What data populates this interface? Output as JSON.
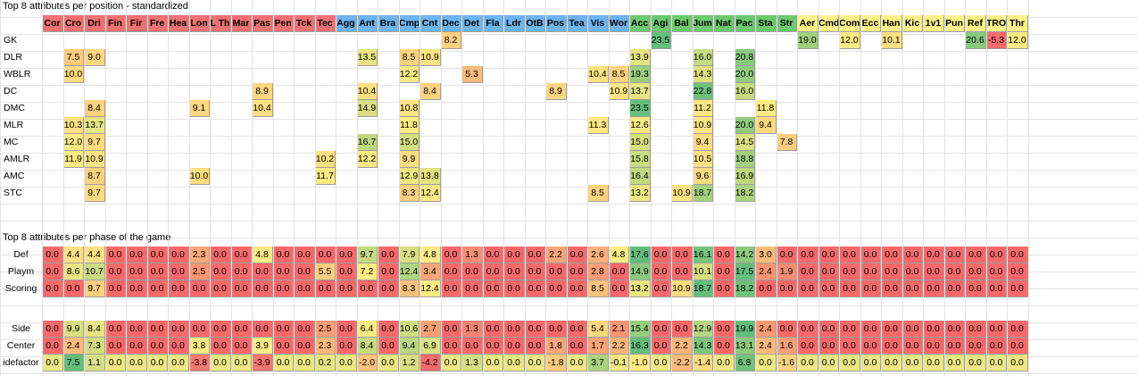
{
  "titles": {
    "position": "Top 8 attributes per position - standardized",
    "phase": "Top 8 attributes per phase of the game"
  },
  "colors": {
    "red_header": "#f07171",
    "blue_header": "#6db5ef",
    "green_header": "#6dc96d",
    "yellow_header": "#fff28a",
    "scale_low": "#f8696b",
    "scale_mid": "#ffeb84",
    "scale_high": "#63be7b"
  },
  "headers": [
    {
      "label": "Cor",
      "group": "red"
    },
    {
      "label": "Cro",
      "group": "red"
    },
    {
      "label": "Dri",
      "group": "red"
    },
    {
      "label": "Fin",
      "group": "red"
    },
    {
      "label": "Fir",
      "group": "red"
    },
    {
      "label": "Fre",
      "group": "red"
    },
    {
      "label": "Hea",
      "group": "red"
    },
    {
      "label": "Lon",
      "group": "red"
    },
    {
      "label": "L Th",
      "group": "red"
    },
    {
      "label": "Mar",
      "group": "red"
    },
    {
      "label": "Pas",
      "group": "red"
    },
    {
      "label": "Pen",
      "group": "red"
    },
    {
      "label": "Tck",
      "group": "red"
    },
    {
      "label": "Tec",
      "group": "red"
    },
    {
      "label": "Agg",
      "group": "blue"
    },
    {
      "label": "Ant",
      "group": "blue"
    },
    {
      "label": "Bra",
      "group": "blue"
    },
    {
      "label": "Cmp",
      "group": "blue"
    },
    {
      "label": "Cnt",
      "group": "blue"
    },
    {
      "label": "Dec",
      "group": "blue"
    },
    {
      "label": "Det",
      "group": "blue"
    },
    {
      "label": "Fla",
      "group": "blue"
    },
    {
      "label": "Ldr",
      "group": "blue"
    },
    {
      "label": "OtB",
      "group": "blue"
    },
    {
      "label": "Pos",
      "group": "blue"
    },
    {
      "label": "Tea",
      "group": "blue"
    },
    {
      "label": "Vis",
      "group": "blue"
    },
    {
      "label": "Wor",
      "group": "blue"
    },
    {
      "label": "Acc",
      "group": "green"
    },
    {
      "label": "Agi",
      "group": "green"
    },
    {
      "label": "Bal",
      "group": "green"
    },
    {
      "label": "Jum",
      "group": "green"
    },
    {
      "label": "Nat",
      "group": "green"
    },
    {
      "label": "Pac",
      "group": "green"
    },
    {
      "label": "Sta",
      "group": "green"
    },
    {
      "label": "Str",
      "group": "green"
    },
    {
      "label": "Aer",
      "group": "yellow"
    },
    {
      "label": "Cmd",
      "group": "yellow"
    },
    {
      "label": "Com",
      "group": "yellow"
    },
    {
      "label": "Ecc",
      "group": "yellow"
    },
    {
      "label": "Han",
      "group": "yellow"
    },
    {
      "label": "Kic",
      "group": "yellow"
    },
    {
      "label": "1v1",
      "group": "yellow"
    },
    {
      "label": "Pun",
      "group": "yellow"
    },
    {
      "label": "Ref",
      "group": "yellow"
    },
    {
      "label": "TRO",
      "group": "yellow"
    },
    {
      "label": "Thr",
      "group": "yellow"
    }
  ],
  "position_rows": [
    {
      "label": "GK",
      "cells": {
        "Dec": "8.2",
        "Agi": "23.5",
        "Aer": "19.0",
        "Com": "12.0",
        "Han": "10.1",
        "Ref": "20.6",
        "TRO": "-5.3",
        "Thr": "12.0"
      }
    },
    {
      "label": "DLR",
      "cells": {
        "Cro": "7.5",
        "Dri": "9.0",
        "Ant": "13.5",
        "Cmp": "8.5",
        "Cnt": "10.9",
        "Acc": "13.9",
        "Jum": "16.0",
        "Pac": "20.8"
      }
    },
    {
      "label": "WBLR",
      "cells": {
        "Cro": "10.0",
        "Cmp": "12.2",
        "Det": "5.3",
        "Vis": "10.4",
        "Wor": "8.5",
        "Acc": "19.3",
        "Jum": "14.3",
        "Pac": "20.0"
      }
    },
    {
      "label": "DC",
      "cells": {
        "Pas": "8.9",
        "Ant": "10.4",
        "Cnt": "8.4",
        "Pos": "8.9",
        "Wor": "10.9",
        "Acc": "13.7",
        "Jum": "22.8",
        "Pac": "16.0"
      }
    },
    {
      "label": "DMC",
      "cells": {
        "Dri": "8.4",
        "Lon": "9.1",
        "Pas": "10.4",
        "Ant": "14.9",
        "Cmp": "10.8",
        "Acc": "23.5",
        "Jum": "11.2",
        "Sta": "11.8"
      }
    },
    {
      "label": "MLR",
      "cells": {
        "Cro": "10.3",
        "Dri": "13.7",
        "Cmp": "11.8",
        "Vis": "11.3",
        "Acc": "12.6",
        "Jum": "10.9",
        "Pac": "20.0",
        "Sta": "9.4"
      }
    },
    {
      "label": "MC",
      "cells": {
        "Cro": "12.0",
        "Dri": "9.7",
        "Ant": "16.7",
        "Cmp": "15.0",
        "Acc": "15.0",
        "Jum": "9.4",
        "Pac": "14.5",
        "Str": "7.8"
      }
    },
    {
      "label": "AMLR",
      "cells": {
        "Cro": "11.9",
        "Dri": "10.9",
        "Tec": "10.2",
        "Ant": "12.2",
        "Cmp": "9.9",
        "Acc": "15.8",
        "Jum": "10.5",
        "Pac": "18.8"
      }
    },
    {
      "label": "AMC",
      "cells": {
        "Dri": "8.7",
        "Lon": "10.0",
        "Tec": "11.7",
        "Cmp": "12.9",
        "Cnt": "13.8",
        "Acc": "16.4",
        "Jum": "9.6",
        "Pac": "16.9"
      }
    },
    {
      "label": "STC",
      "cells": {
        "Dri": "9.7",
        "Cmp": "8.3",
        "Cnt": "12.4",
        "Vis": "8.5",
        "Acc": "13.2",
        "Bal": "10.9",
        "Jum": "18.7",
        "Pac": "18.2"
      }
    }
  ],
  "phase_rows": [
    {
      "label": "Def",
      "values": [
        "0.0",
        "4.4",
        "4.4",
        "0.0",
        "0.0",
        "0.0",
        "0.0",
        "2.3",
        "0.0",
        "0.0",
        "4.8",
        "0.0",
        "0.0",
        "0.0",
        "0.0",
        "9.7",
        "0.0",
        "7.9",
        "4.8",
        "0.0",
        "1.3",
        "0.0",
        "0.0",
        "0.0",
        "2.2",
        "0.0",
        "2.6",
        "4.8",
        "17.6",
        "0.0",
        "0.0",
        "16.1",
        "0.0",
        "14.2",
        "3.0",
        "0.0",
        "0.0",
        "0.0",
        "0.0",
        "0.0",
        "0.0",
        "0.0",
        "0.0",
        "0.0",
        "0.0",
        "0.0",
        "0.0"
      ]
    },
    {
      "label": "Playm",
      "values": [
        "0.0",
        "8.6",
        "10.7",
        "0.0",
        "0.0",
        "0.0",
        "0.0",
        "2.5",
        "0.0",
        "0.0",
        "0.0",
        "0.0",
        "0.0",
        "5.5",
        "0.0",
        "7.2",
        "0.0",
        "12.4",
        "3.4",
        "0.0",
        "0.0",
        "0.0",
        "0.0",
        "0.0",
        "0.0",
        "0.0",
        "2.8",
        "0.0",
        "14.9",
        "0.0",
        "0.0",
        "10.1",
        "0.0",
        "17.5",
        "2.4",
        "1.9",
        "0.0",
        "0.0",
        "0.0",
        "0.0",
        "0.0",
        "0.0",
        "0.0",
        "0.0",
        "0.0",
        "0.0",
        "0.0"
      ]
    },
    {
      "label": "Scoring",
      "values": [
        "0.0",
        "0.0",
        "9.7",
        "0.0",
        "0.0",
        "0.0",
        "0.0",
        "0.0",
        "0.0",
        "0.0",
        "0.0",
        "0.0",
        "0.0",
        "0.0",
        "0.0",
        "0.0",
        "0.0",
        "8.3",
        "12.4",
        "0.0",
        "0.0",
        "0.0",
        "0.0",
        "0.0",
        "0.0",
        "0.0",
        "8.5",
        "0.0",
        "13.2",
        "0.0",
        "10.9",
        "18.7",
        "0.0",
        "18.2",
        "0.0",
        "0.0",
        "0.0",
        "0.0",
        "0.0",
        "0.0",
        "0.0",
        "0.0",
        "0.0",
        "0.0",
        "0.0",
        "0.0",
        "0.0"
      ]
    }
  ],
  "side_rows": [
    {
      "label": "Side",
      "values": [
        "0.0",
        "9.9",
        "8.4",
        "0.0",
        "0.0",
        "0.0",
        "0.0",
        "0.0",
        "0.0",
        "0.0",
        "0.0",
        "0.0",
        "0.0",
        "2.5",
        "0.0",
        "6.4",
        "0.0",
        "10.6",
        "2.7",
        "0.0",
        "1.3",
        "0.0",
        "0.0",
        "0.0",
        "0.0",
        "0.0",
        "5.4",
        "2.1",
        "15.4",
        "0.0",
        "0.0",
        "12.9",
        "0.0",
        "19.9",
        "2.4",
        "0.0",
        "0.0",
        "0.0",
        "0.0",
        "0.0",
        "0.0",
        "0.0",
        "0.0",
        "0.0",
        "0.0",
        "0.0",
        "0.0"
      ]
    },
    {
      "label": "Center",
      "values": [
        "0.0",
        "2.4",
        "7.3",
        "0.0",
        "0.0",
        "0.0",
        "0.0",
        "3.8",
        "0.0",
        "0.0",
        "3.9",
        "0.0",
        "0.0",
        "2.3",
        "0.0",
        "8.4",
        "0.0",
        "9.4",
        "6.9",
        "0.0",
        "0.0",
        "0.0",
        "0.0",
        "0.0",
        "1.8",
        "0.0",
        "1.7",
        "2.2",
        "16.3",
        "0.0",
        "2.2",
        "14.3",
        "0.0",
        "13.1",
        "2.4",
        "1.6",
        "0.0",
        "0.0",
        "0.0",
        "0.0",
        "0.0",
        "0.0",
        "0.0",
        "0.0",
        "0.0",
        "0.0",
        "0.0"
      ]
    },
    {
      "label": "idefactor",
      "values": [
        "0.0",
        "7.5",
        "1.1",
        "0.0",
        "0.0",
        "0.0",
        "0.0",
        "-3.8",
        "0.0",
        "0.0",
        "-3.9",
        "0.0",
        "0.0",
        "0.2",
        "0.0",
        "-2.0",
        "0.0",
        "1.2",
        "-4.2",
        "0.0",
        "1.3",
        "0.0",
        "0.0",
        "0.0",
        "-1.8",
        "0.0",
        "3.7",
        "-0.1",
        "-1.0",
        "0.0",
        "-2.2",
        "-1.4",
        "0.0",
        "6.8",
        "0.0",
        "-1.6",
        "0.0",
        "0.0",
        "0.0",
        "0.0",
        "0.0",
        "0.0",
        "0.0",
        "0.0",
        "0.0",
        "0.0",
        "0.0"
      ]
    }
  ]
}
